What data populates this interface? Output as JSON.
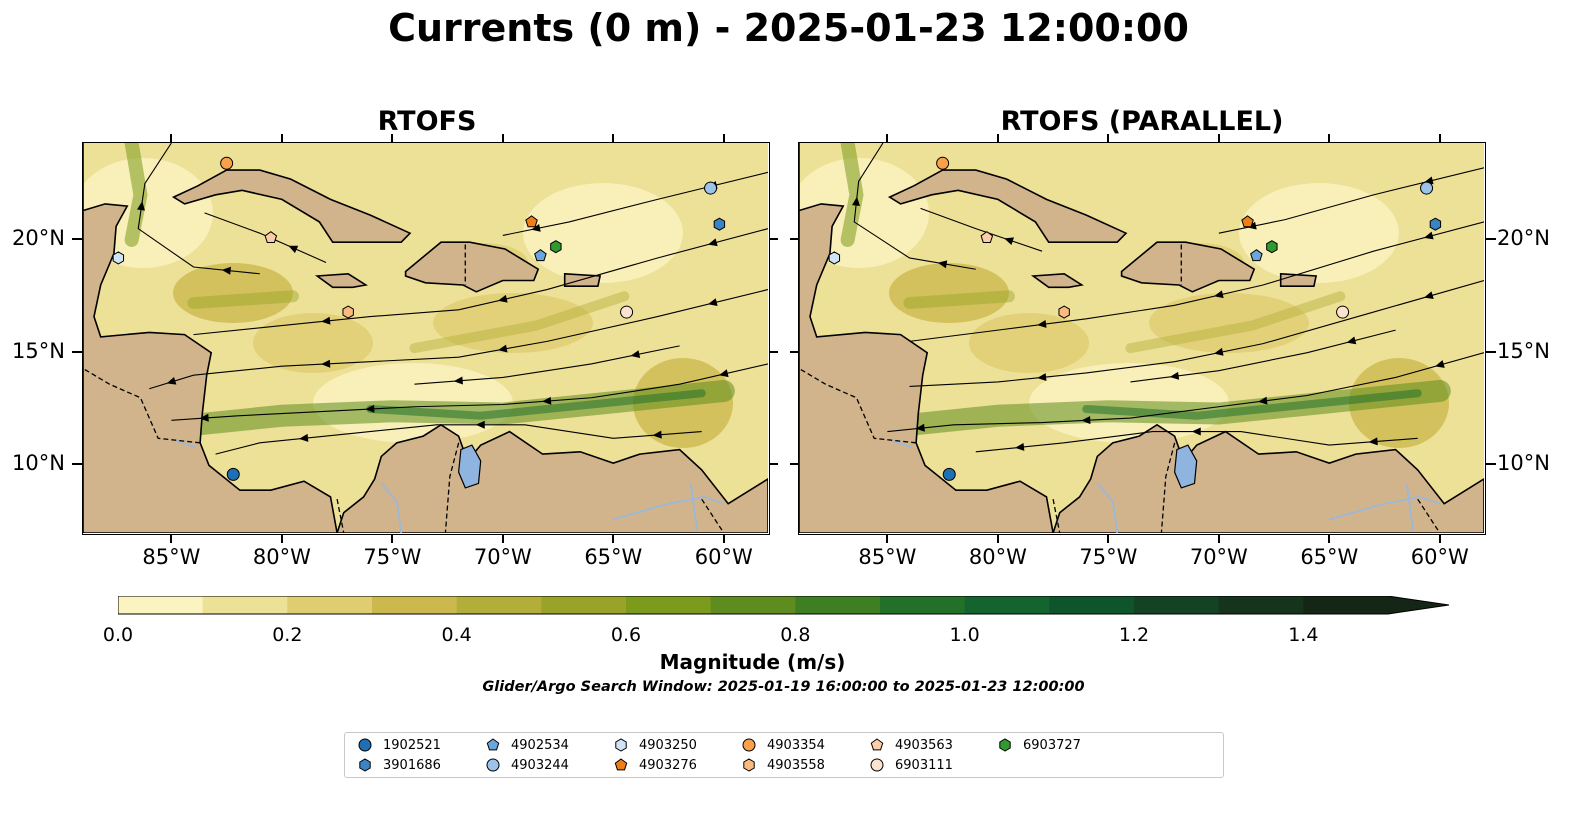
{
  "title": "Currents (0 m) - 2025-01-23 12:00:00",
  "panels": [
    {
      "title": "RTOFS"
    },
    {
      "title": "RTOFS (PARALLEL)"
    }
  ],
  "axes": {
    "x_ticks": [
      "85°W",
      "80°W",
      "75°W",
      "70°W",
      "65°W",
      "60°W"
    ],
    "y_ticks": [
      "20°N",
      "15°N",
      "10°N"
    ]
  },
  "colorbar": {
    "label": "Magnitude (m/s)",
    "ticks": [
      "0.0",
      "0.2",
      "0.4",
      "0.6",
      "0.8",
      "1.0",
      "1.2",
      "1.4"
    ],
    "colors": [
      "#fbf3c0",
      "#ede097",
      "#dfcd70",
      "#cbb94e",
      "#b3ae3a",
      "#98a328",
      "#7c9a1c",
      "#5e8c1e",
      "#3f7f23",
      "#237129",
      "#13642e",
      "#0e552b",
      "#134224",
      "#16331c",
      "#142716"
    ],
    "land_color": "#d2b48c",
    "lake_color": "#8fb4df"
  },
  "search_window": "Glider/Argo Search Window: 2025-01-19 16:00:00 to 2025-01-23 12:00:00",
  "legend": [
    {
      "id": "1902521",
      "marker": "circle",
      "color": "#1f6fb4"
    },
    {
      "id": "3901686",
      "marker": "hexagon",
      "color": "#3a84c4"
    },
    {
      "id": "4902534",
      "marker": "pentagon",
      "color": "#6aa6dc"
    },
    {
      "id": "4903244",
      "marker": "circle",
      "color": "#9cc4ea"
    },
    {
      "id": "4903250",
      "marker": "hexagon",
      "color": "#cfe4f6"
    },
    {
      "id": "4903276",
      "marker": "pentagon",
      "color": "#f07d16"
    },
    {
      "id": "4903354",
      "marker": "circle",
      "color": "#f8a04a"
    },
    {
      "id": "4903558",
      "marker": "hexagon",
      "color": "#fbbb80"
    },
    {
      "id": "4903563",
      "marker": "pentagon",
      "color": "#fccda6"
    },
    {
      "id": "6903111",
      "marker": "circle",
      "color": "#fde3cf"
    },
    {
      "id": "6903727",
      "marker": "hexagon",
      "color": "#2f9a2f"
    }
  ],
  "floats": [
    {
      "id": "4903354",
      "lon": -82.5,
      "lat": 23.4
    },
    {
      "id": "4903244",
      "lon": -60.6,
      "lat": 22.3
    },
    {
      "id": "3901686",
      "lon": -60.2,
      "lat": 20.7
    },
    {
      "id": "4903276",
      "lon": -68.7,
      "lat": 20.8
    },
    {
      "id": "4903563",
      "lon": -80.5,
      "lat": 20.1
    },
    {
      "id": "4903250",
      "lon": -87.4,
      "lat": 19.2
    },
    {
      "id": "4902534",
      "lon": -68.3,
      "lat": 19.3
    },
    {
      "id": "6903727",
      "lon": -67.6,
      "lat": 19.7
    },
    {
      "id": "4903558",
      "lon": -77.0,
      "lat": 16.8
    },
    {
      "id": "6903111",
      "lon": -64.4,
      "lat": 16.8
    },
    {
      "id": "1902521",
      "lon": -82.2,
      "lat": 9.6
    }
  ]
}
